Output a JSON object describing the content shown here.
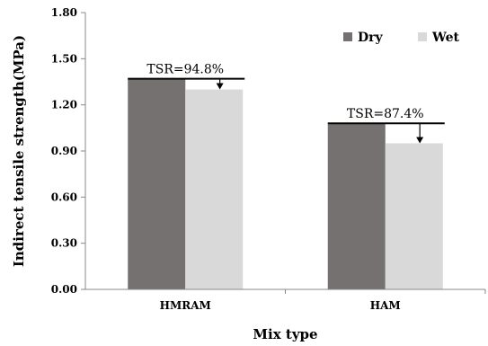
{
  "chart_data": {
    "type": "bar",
    "categories": [
      "HMRAM",
      "HAM"
    ],
    "series": [
      {
        "name": "Dry",
        "values": [
          1.37,
          1.08
        ],
        "color": "#767171"
      },
      {
        "name": "Wet",
        "values": [
          1.3,
          0.95
        ],
        "color": "#d9d9d9"
      }
    ],
    "xlabel": "Mix type",
    "ylabel": "Indirect tensile strength(MPa)",
    "ylim": [
      0,
      1.8
    ],
    "yticks": [
      "0.00",
      "0.30",
      "0.60",
      "0.90",
      "1.20",
      "1.50",
      "1.80"
    ],
    "grid": false,
    "legend_position": "top-right",
    "annotations": [
      {
        "category": "HMRAM",
        "label": "TSR=94.8%"
      },
      {
        "category": "HAM",
        "label": "TSR=87.4%"
      }
    ]
  }
}
